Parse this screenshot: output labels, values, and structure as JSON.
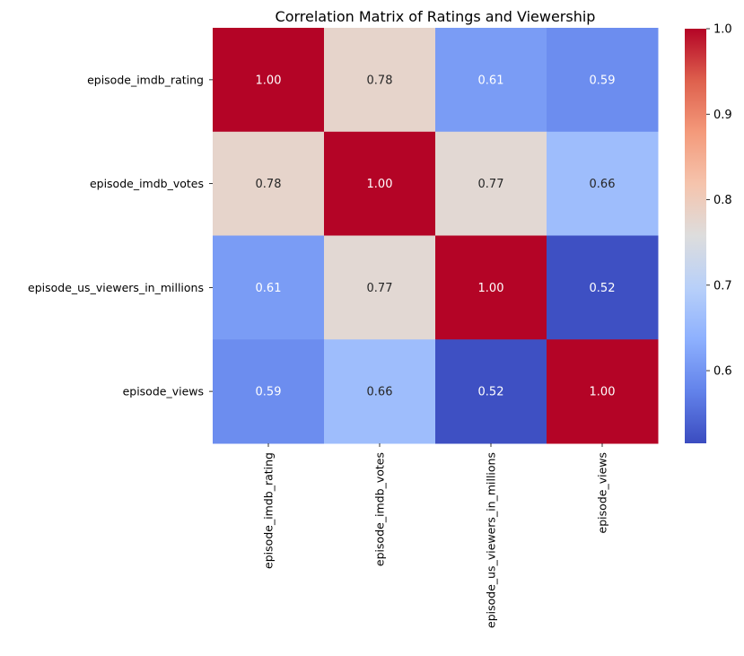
{
  "chart_data": {
    "type": "heatmap",
    "title": "Correlation Matrix of Ratings and Viewership",
    "row_labels": [
      "episode_imdb_rating",
      "episode_imdb_votes",
      "episode_us_viewers_in_millions",
      "episode_views"
    ],
    "column_labels": [
      "episode_imdb_rating",
      "episode_imdb_votes",
      "episode_us_viewers_in_millions",
      "episode_views"
    ],
    "values": [
      [
        1.0,
        0.78,
        0.61,
        0.59
      ],
      [
        0.78,
        1.0,
        0.77,
        0.66
      ],
      [
        0.61,
        0.77,
        1.0,
        0.52
      ],
      [
        0.59,
        0.66,
        0.52,
        1.0
      ]
    ],
    "value_labels": [
      [
        "1.00",
        "0.78",
        "0.61",
        "0.59"
      ],
      [
        "0.78",
        "1.00",
        "0.77",
        "0.66"
      ],
      [
        "0.61",
        "0.77",
        "1.00",
        "0.52"
      ],
      [
        "0.59",
        "0.66",
        "0.52",
        "1.00"
      ]
    ],
    "colormap": "coolwarm",
    "color_range": [
      0.515,
      1.0
    ],
    "colorbar": {
      "ticks": [
        0.6,
        0.7,
        0.8,
        0.9,
        1.0
      ],
      "tick_labels": [
        "0.6",
        "0.7",
        "0.8",
        "0.9",
        "1.0"
      ]
    },
    "annotation_colors": {
      "light": "#ffffff",
      "dark": "#262626"
    }
  }
}
